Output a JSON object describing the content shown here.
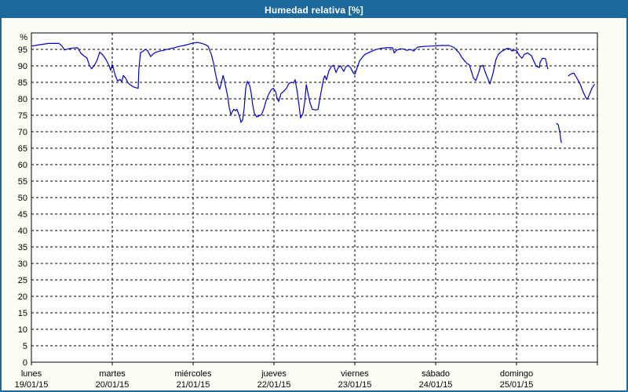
{
  "header": {
    "title": "Humedad relativa [%]"
  },
  "colors": {
    "header_bg": "#1E699B",
    "frame_border": "#1E699B",
    "page_bg": "#FDFDF6",
    "plot_bg": "#FFFFFF",
    "grid": "#000000",
    "axis": "#000000",
    "line": "#0000CC",
    "title_text": "#FFFFFF",
    "label_text": "#000000"
  },
  "chart_data": {
    "type": "line",
    "title": "Humedad relativa [%]",
    "ylabel": "%",
    "unit_label": "%",
    "ylim": [
      0,
      100
    ],
    "y_tick_step": 5,
    "y_ticks": [
      0,
      5,
      10,
      15,
      20,
      25,
      30,
      35,
      40,
      45,
      50,
      55,
      60,
      65,
      70,
      75,
      80,
      85,
      90,
      95
    ],
    "grid": "dashed",
    "legend": "none",
    "x_range_hours": [
      0,
      168
    ],
    "hours_per_day": 24,
    "x_ticks": [
      {
        "day": "lunes",
        "date": "19/01/15"
      },
      {
        "day": "martes",
        "date": "20/01/15"
      },
      {
        "day": "miércoles",
        "date": "21/01/15"
      },
      {
        "day": "jueves",
        "date": "22/01/15"
      },
      {
        "day": "viernes",
        "date": "23/01/15"
      },
      {
        "day": "sábado",
        "date": "24/01/15"
      },
      {
        "day": "domingo",
        "date": "25/01/15"
      }
    ],
    "series": [
      {
        "name": "Humedad relativa",
        "color": "#0000CC",
        "segments": [
          [
            [
              0,
              96.0
            ],
            [
              2.3,
              96.4
            ],
            [
              5.1,
              96.8
            ],
            [
              8.2,
              96.8
            ],
            [
              9.1,
              96.0
            ],
            [
              9.8,
              94.8
            ],
            [
              10.7,
              95.1
            ],
            [
              12.1,
              95.4
            ],
            [
              13.7,
              95.5
            ],
            [
              14.7,
              93.8
            ],
            [
              15.6,
              93.0
            ],
            [
              16.5,
              92.4
            ],
            [
              17.2,
              90.2
            ],
            [
              17.9,
              89.1
            ],
            [
              18.9,
              90.5
            ],
            [
              19.6,
              92.0
            ],
            [
              20.3,
              94.2
            ],
            [
              21.2,
              93.3
            ],
            [
              22.1,
              92.0
            ],
            [
              23.1,
              90.0
            ],
            [
              23.5,
              88.6
            ],
            [
              24.0,
              90.4
            ],
            [
              24.5,
              88.7
            ],
            [
              24.9,
              87.0
            ],
            [
              25.6,
              85.4
            ],
            [
              26.3,
              85.9
            ],
            [
              26.8,
              85.2
            ],
            [
              27.3,
              87.1
            ],
            [
              28.0,
              86.2
            ],
            [
              28.7,
              84.8
            ],
            [
              29.4,
              84.2
            ],
            [
              30.3,
              83.6
            ],
            [
              31.2,
              83.3
            ],
            [
              31.7,
              83.2
            ],
            [
              31.9,
              89.0
            ],
            [
              32.4,
              94.0
            ],
            [
              33.1,
              94.4
            ],
            [
              33.8,
              95.0
            ],
            [
              34.5,
              94.6
            ],
            [
              35.4,
              92.8
            ],
            [
              36.1,
              93.6
            ],
            [
              37.0,
              94.2
            ],
            [
              38.2,
              94.5
            ],
            [
              39.6,
              94.8
            ],
            [
              41.0,
              95.2
            ],
            [
              42.4,
              95.5
            ],
            [
              43.8,
              95.9
            ],
            [
              45.4,
              96.2
            ],
            [
              46.8,
              96.6
            ],
            [
              48.2,
              97.0
            ],
            [
              49.4,
              97.1
            ],
            [
              50.6,
              96.8
            ],
            [
              51.5,
              96.5
            ],
            [
              52.4,
              96.0
            ],
            [
              53.4,
              93.5
            ],
            [
              54.1,
              90.7
            ],
            [
              54.5,
              88.3
            ],
            [
              55.0,
              86.0
            ],
            [
              55.4,
              84.2
            ],
            [
              55.9,
              82.9
            ],
            [
              56.4,
              84.8
            ],
            [
              56.9,
              87.1
            ],
            [
              57.3,
              85.5
            ],
            [
              57.8,
              83.0
            ],
            [
              58.3,
              80.5
            ],
            [
              58.7,
              77.5
            ],
            [
              59.2,
              75.2
            ],
            [
              59.7,
              76.2
            ],
            [
              60.1,
              76.8
            ],
            [
              60.6,
              76.4
            ],
            [
              61.0,
              76.8
            ],
            [
              61.5,
              75.5
            ],
            [
              62.0,
              73.8
            ],
            [
              62.2,
              72.8
            ],
            [
              62.7,
              73.6
            ],
            [
              63.2,
              77.5
            ],
            [
              63.6,
              83.0
            ],
            [
              64.1,
              85.3
            ],
            [
              64.8,
              84.0
            ],
            [
              65.2,
              82.0
            ],
            [
              65.7,
              78.0
            ],
            [
              66.2,
              75.5
            ],
            [
              66.9,
              74.5
            ],
            [
              67.6,
              74.8
            ],
            [
              68.3,
              75.2
            ],
            [
              69.0,
              77.0
            ],
            [
              69.7,
              79.5
            ],
            [
              70.4,
              81.3
            ],
            [
              71.1,
              82.6
            ],
            [
              71.8,
              83.2
            ],
            [
              72.5,
              82.2
            ],
            [
              72.9,
              80.2
            ],
            [
              73.4,
              79.2
            ],
            [
              74.1,
              81.6
            ],
            [
              75.0,
              82.4
            ],
            [
              75.7,
              83.2
            ],
            [
              76.4,
              84.6
            ],
            [
              77.1,
              85.0
            ],
            [
              77.8,
              84.8
            ],
            [
              78.3,
              85.8
            ],
            [
              79.0,
              81.5
            ],
            [
              79.5,
              77.5
            ],
            [
              79.9,
              74.2
            ],
            [
              80.6,
              75.5
            ],
            [
              81.1,
              79.0
            ],
            [
              81.6,
              84.3
            ],
            [
              82.0,
              82.2
            ],
            [
              82.7,
              78.8
            ],
            [
              83.4,
              76.8
            ],
            [
              84.4,
              76.6
            ],
            [
              85.1,
              76.8
            ],
            [
              85.7,
              80.5
            ],
            [
              86.7,
              85.9
            ],
            [
              87.1,
              87.0
            ],
            [
              87.6,
              85.8
            ],
            [
              88.3,
              88.5
            ],
            [
              89.0,
              89.8
            ],
            [
              89.7,
              90.2
            ],
            [
              90.4,
              88.0
            ],
            [
              91.1,
              89.5
            ],
            [
              91.8,
              90.0
            ],
            [
              92.7,
              88.3
            ],
            [
              93.4,
              89.8
            ],
            [
              94.1,
              90.2
            ],
            [
              94.8,
              89.3
            ],
            [
              95.5,
              87.9
            ],
            [
              96.0,
              87.5
            ],
            [
              96.7,
              89.4
            ],
            [
              97.4,
              91.5
            ],
            [
              98.3,
              92.7
            ],
            [
              99.0,
              93.5
            ],
            [
              100.7,
              94.3
            ],
            [
              102.1,
              94.9
            ],
            [
              103.7,
              95.3
            ],
            [
              105.3,
              95.5
            ],
            [
              107.2,
              95.5
            ],
            [
              107.7,
              93.9
            ],
            [
              108.3,
              94.7
            ],
            [
              109.5,
              95.2
            ],
            [
              110.7,
              95.1
            ],
            [
              111.4,
              94.7
            ],
            [
              112.6,
              95.0
            ],
            [
              113.5,
              94.5
            ],
            [
              114.6,
              95.7
            ],
            [
              116.5,
              95.9
            ],
            [
              118.4,
              96.0
            ],
            [
              120.2,
              96.1
            ],
            [
              122.1,
              96.2
            ],
            [
              124.0,
              96.2
            ],
            [
              125.4,
              95.6
            ],
            [
              126.3,
              94.7
            ],
            [
              127.0,
              93.9
            ],
            [
              127.7,
              92.7
            ],
            [
              128.6,
              91.5
            ],
            [
              129.3,
              90.7
            ],
            [
              130.0,
              90.3
            ],
            [
              130.7,
              88.0
            ],
            [
              131.2,
              86.3
            ],
            [
              131.9,
              85.5
            ],
            [
              132.6,
              87.5
            ],
            [
              133.3,
              89.8
            ],
            [
              134.0,
              90.2
            ],
            [
              134.7,
              88.1
            ],
            [
              135.6,
              85.8
            ],
            [
              136.1,
              84.5
            ],
            [
              137.0,
              87.7
            ],
            [
              137.9,
              91.9
            ],
            [
              138.6,
              93.5
            ],
            [
              139.3,
              94.2
            ],
            [
              140.3,
              94.8
            ],
            [
              141.2,
              95.3
            ],
            [
              142.1,
              95.2
            ],
            [
              142.6,
              94.5
            ],
            [
              143.5,
              94.8
            ],
            [
              144.0,
              94.6
            ],
            [
              144.9,
              93.1
            ],
            [
              145.6,
              92.3
            ],
            [
              146.3,
              93.5
            ],
            [
              147.3,
              93.9
            ],
            [
              148.4,
              93.1
            ],
            [
              149.1,
              91.5
            ],
            [
              149.8,
              89.9
            ],
            [
              150.8,
              89.5
            ],
            [
              151.0,
              91.1
            ],
            [
              151.7,
              92.3
            ],
            [
              152.6,
              92.2
            ],
            [
              153.1,
              89.8
            ],
            [
              153.3,
              89.1
            ]
          ],
          [
            [
              155.9,
              72.5
            ],
            [
              156.4,
              72.1
            ],
            [
              156.6,
              70.9
            ],
            [
              156.9,
              69.7
            ],
            [
              157.1,
              67.7
            ],
            [
              157.3,
              66.7
            ]
          ],
          [
            [
              159.4,
              87.0
            ],
            [
              160.3,
              87.6
            ],
            [
              161.0,
              87.8
            ],
            [
              161.9,
              86.3
            ],
            [
              162.9,
              84.4
            ],
            [
              163.8,
              82.0
            ],
            [
              164.5,
              80.5
            ],
            [
              165.0,
              79.8
            ],
            [
              165.7,
              81.5
            ],
            [
              166.4,
              83.2
            ],
            [
              167.1,
              84.3
            ]
          ]
        ]
      }
    ]
  }
}
